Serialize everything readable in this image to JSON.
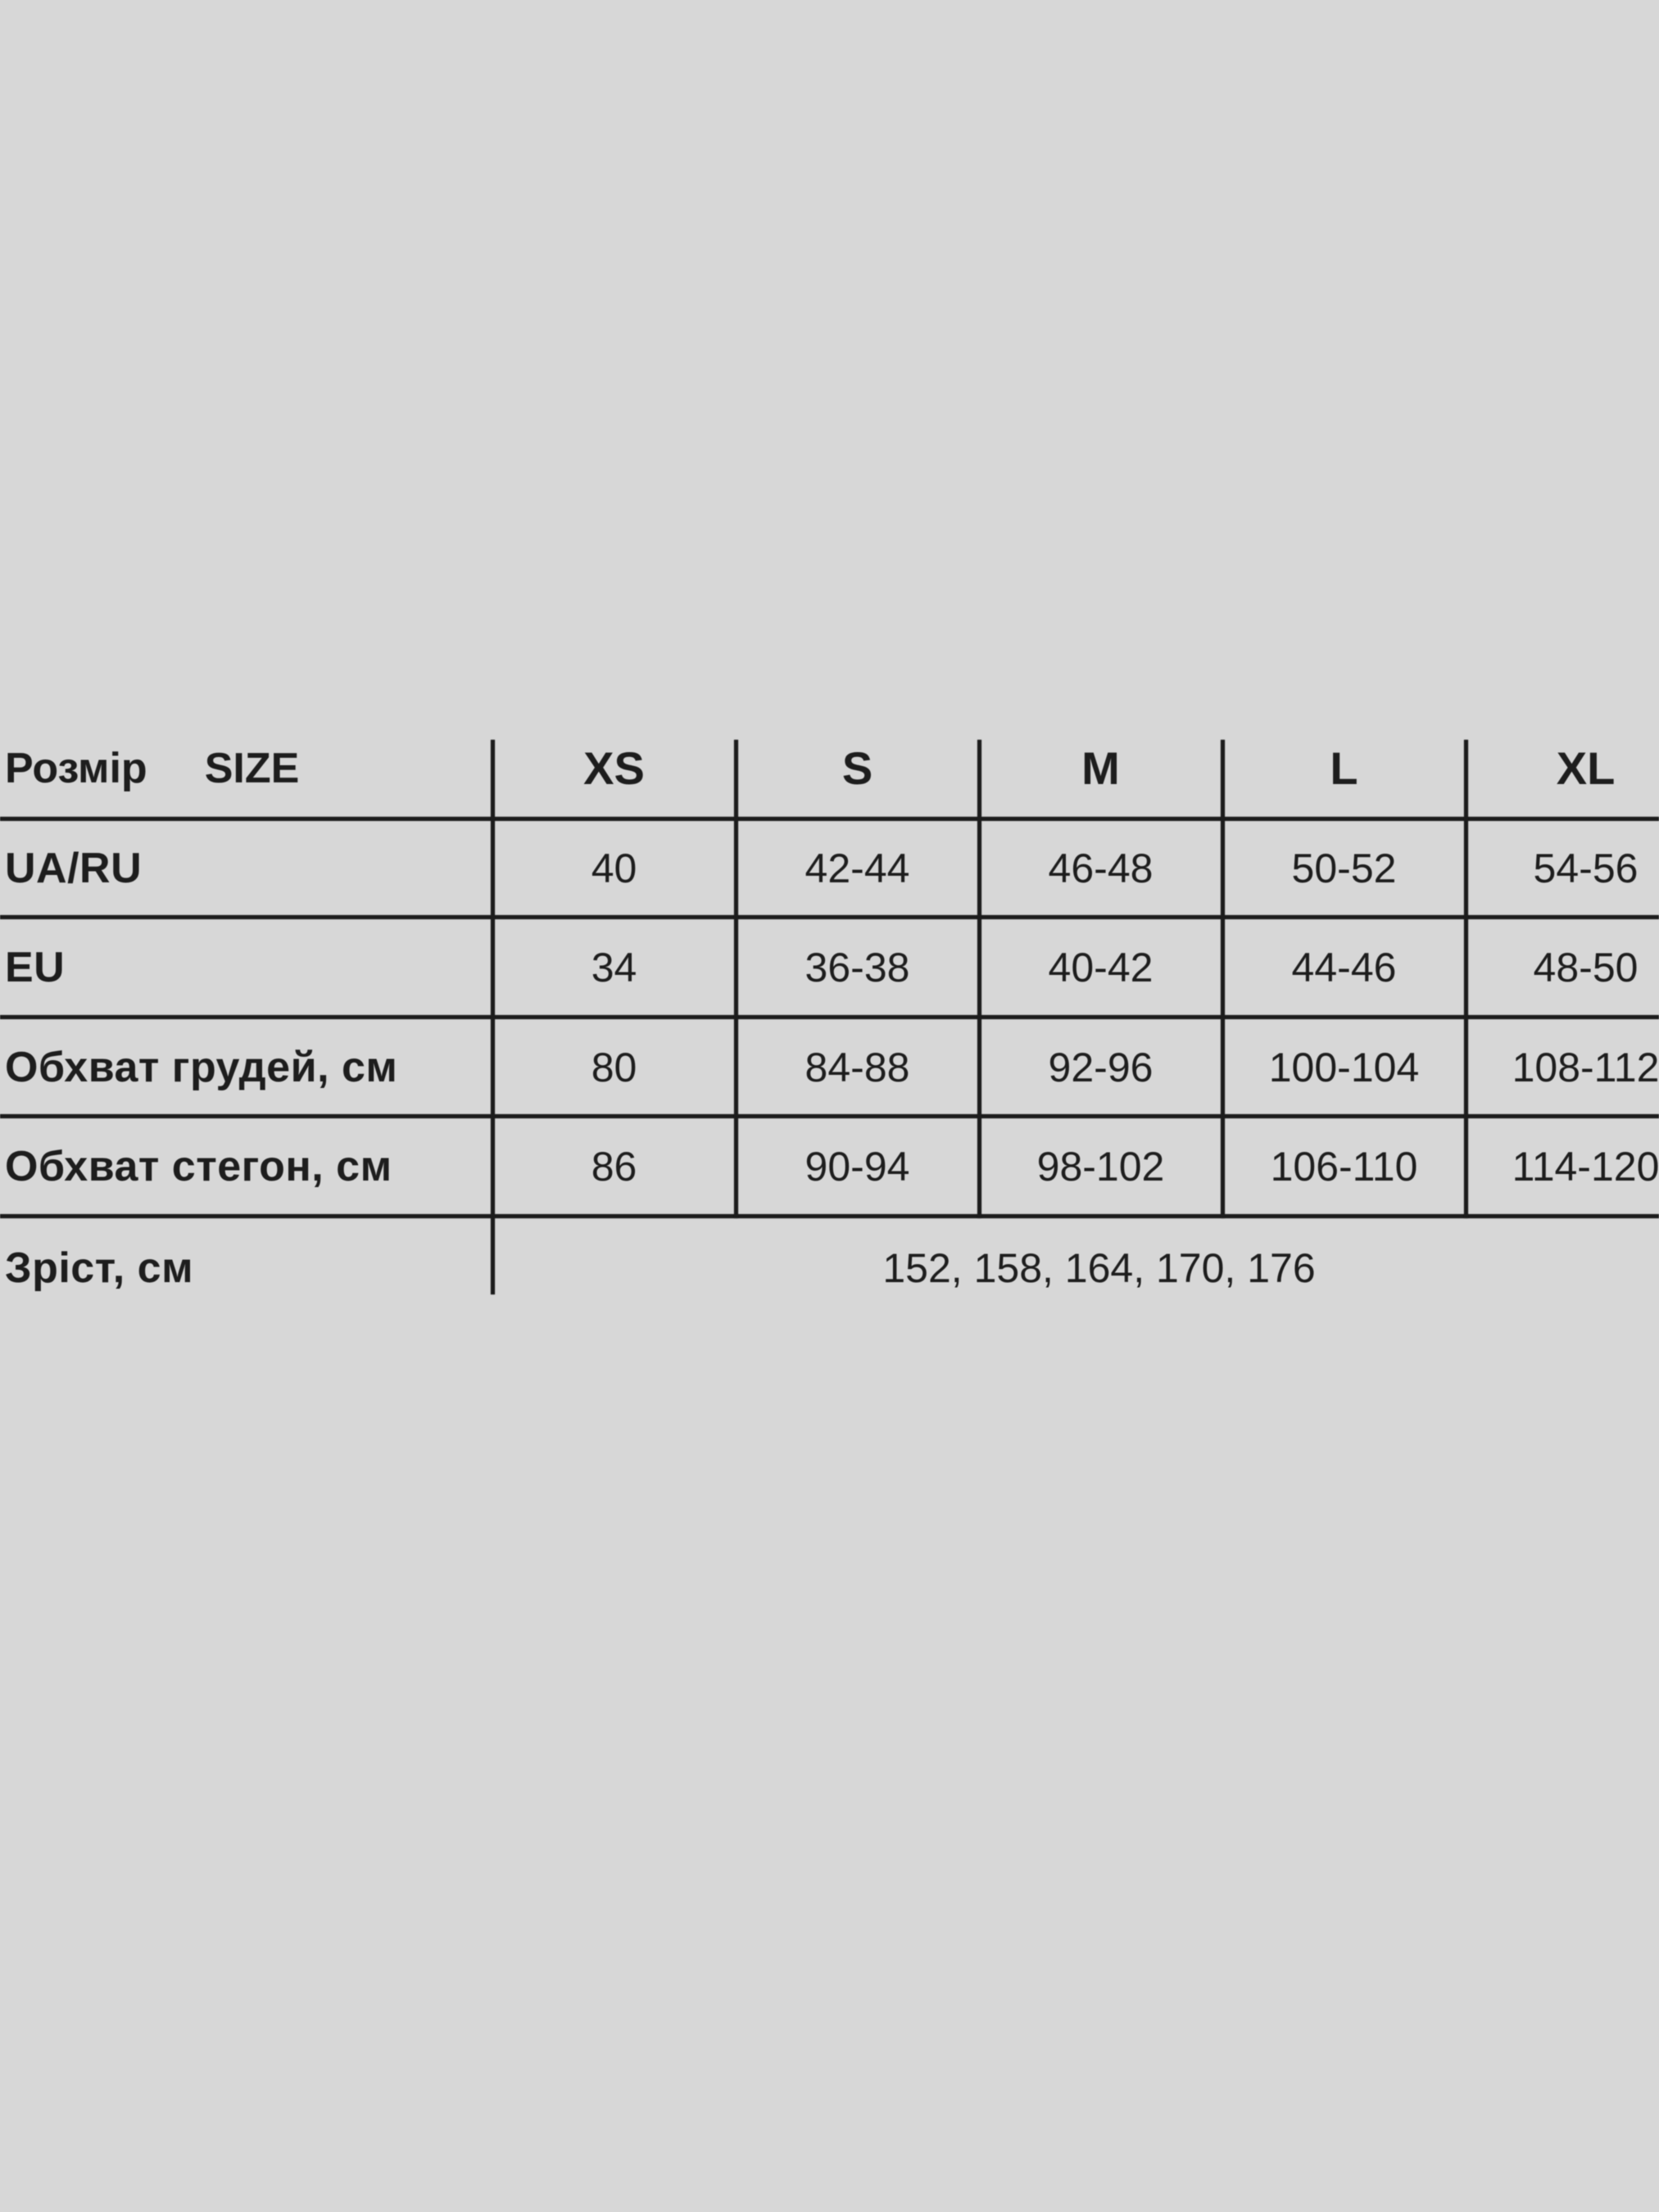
{
  "background_color": "#d7d7d7",
  "line_color": "#1c1c1c",
  "text_color": "#1d1d1d",
  "size_chart": {
    "header": {
      "label_ua": "Розмір",
      "label_en": "SIZE",
      "columns": [
        "XS",
        "S",
        "M",
        "L",
        "XL"
      ]
    },
    "rows": [
      {
        "label": "UA/RU",
        "values": [
          "40",
          "42-44",
          "46-48",
          "50-52",
          "54-56"
        ]
      },
      {
        "label": "EU",
        "values": [
          "34",
          "36-38",
          "40-42",
          "44-46",
          "48-50"
        ]
      },
      {
        "label": "Обхват грудей, см",
        "values": [
          "80",
          "84-88",
          "92-96",
          "100-104",
          "108-112"
        ]
      },
      {
        "label": "Обхват стегон, см",
        "values": [
          "86",
          "90-94",
          "98-102",
          "106-110",
          "114-120"
        ]
      }
    ],
    "footer": {
      "label": "Зріст, см",
      "merged_value": "152, 158, 164, 170, 176"
    }
  }
}
